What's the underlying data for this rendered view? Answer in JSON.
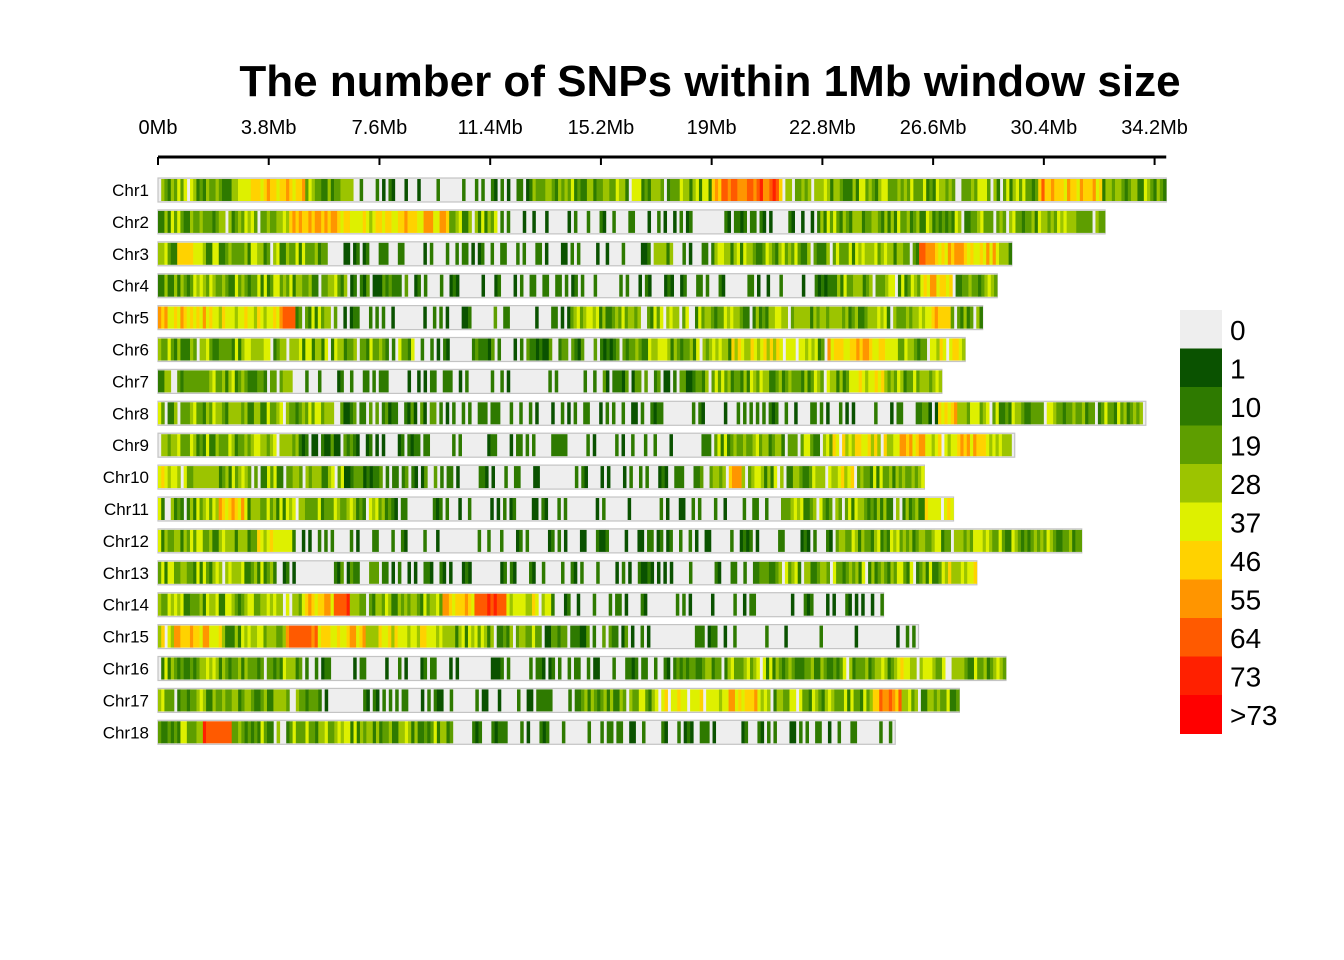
{
  "chart_data": {
    "type": "heatmap",
    "title": "The number of SNPs within 1Mb window size",
    "xlabel": "",
    "ylabel": "",
    "x_ticks": [
      "0Mb",
      "3.8Mb",
      "7.6Mb",
      "11.4Mb",
      "15.2Mb",
      "19Mb",
      "22.8Mb",
      "26.6Mb",
      "30.4Mb",
      "34.2Mb"
    ],
    "x_tick_values_mb": [
      0,
      3.8,
      7.6,
      11.4,
      15.2,
      19.0,
      22.8,
      26.6,
      30.4,
      34.2
    ],
    "xlim_mb": [
      0,
      34.6
    ],
    "legend": {
      "labels": [
        "0",
        "1",
        "10",
        "19",
        "28",
        "37",
        "46",
        "55",
        "64",
        "73",
        ">73"
      ],
      "colors": [
        "#eeeeee",
        "#0a5200",
        "#2e7a00",
        "#5e9e00",
        "#9cc400",
        "#def000",
        "#ffd200",
        "#ff9500",
        "#ff5a00",
        "#ff2000",
        "#ff0000"
      ],
      "position": "right"
    },
    "chromosomes": [
      {
        "name": "Chr1",
        "length_mb": 34.6,
        "pattern": "VVVVVPPPPVVVMMMMMMMMMMDVVVVVVVVVVVBBAAWVVVVVVVVVVVVVVVBPPPVVVV"
      },
      {
        "name": "Chr2",
        "length_mb": 32.5,
        "pattern": "VVVVVVVVPPPPPWPPPPVVVMMMMMMMMMMMMMMMMMMMMVVVVVVVVVVVVVVVVVV"
      },
      {
        "name": "Chr3",
        "length_mb": 29.3,
        "pattern": "VPVVVVVVVMMMMMMMMMMMMMMMMMVMMVVVVVVVVVVVBPPPV"
      },
      {
        "name": "Chr4",
        "length_mb": 28.8,
        "pattern": "VVVVVVVVVVVVDDDDMMMMMMMMMMMMMMMMMMMMMMMMMMDVVVVVVPPVVV"
      },
      {
        "name": "Chr5",
        "length_mb": 28.3,
        "pattern": "PPPWWWWAVVDDDMMMMMMDMMMDVVVVVVVVVVVVVVVVVVVVVPVV"
      },
      {
        "name": "Chr6",
        "length_mb": 27.7,
        "pattern": "VVVVVVVVVVVVVMMMDDDDDDDDVVVVVWWWWVPPPVVWW"
      },
      {
        "name": "Chr7",
        "length_mb": 26.9,
        "pattern": "VVVVVVVMMMMMMMMMMMMMMMMDDDDDVVVVVVVVWWVVV"
      },
      {
        "name": "Chr8",
        "length_mb": 33.9,
        "pattern": "VVVVVVVVVVDDDDDDMMMMMMMMMMMMMMMMMMMMMMMMMMMMDPVVVVVVVVVVV"
      },
      {
        "name": "Chr9",
        "length_mb": 29.4,
        "pattern": "VVVVVVVVVDDDDDMMMMMMMMMMMMMMMMMMMMMMVVVVVVVVWWWWPPWWPPWW"
      },
      {
        "name": "Chr10",
        "length_mb": 26.3,
        "pattern": "WWVVVVVVVVVVVDDDDDDDMMMMMMMMMMMMMMMMMMDVPVVVVVWWWVVVVV"
      },
      {
        "name": "Chr11",
        "length_mb": 27.3,
        "pattern": "VVVVPPVVVVVVVVVVMMMMMMMMMMMMMMMMMMMMMMMMMMDVVVVVVVVVVWW"
      },
      {
        "name": "Chr12",
        "length_mb": 31.7,
        "pattern": "VVVVVVWWMMMMMMMMMMMMMMMMMMMMMMMMMMMMMMMMDVVVVVVVVVVVVVVV"
      },
      {
        "name": "Chr13",
        "length_mb": 28.1,
        "pattern": "VVVVVVVMMMMDDDMMMMMMMMMMMMMMMMMMMMMMMDVVVVVVVVVVVWW"
      },
      {
        "name": "Chr14",
        "length_mb": 24.9,
        "pattern": "VVVVVVVVVPPAVVVVVVPPAAWWVMMMMMMMMMMMMMMMMMMMMM"
      },
      {
        "name": "Chr15",
        "length_mb": 26.1,
        "pattern": "WPPPVVVVAAWPPWWWWWVVVVVVDDDDDDMMMMMMMMMMMMMMMMMM"
      },
      {
        "name": "Chr16",
        "length_mb": 29.1,
        "pattern": "VVVVVVVVVVMMMMMMMMMMMMMMMMMMMMMMMMMDVVVVVVVVVVVVVVVWWWVVVVV"
      },
      {
        "name": "Chr17",
        "length_mb": 27.5,
        "pattern": "VVVVVVVVVVVMMMMMMMMMMMMMMMMMDVVVVVWWWWWPPWVVVVVVVBBVVVV"
      },
      {
        "name": "Chr18",
        "length_mb": 25.3,
        "pattern": "VVVAAVVVVVVVWVVVVVVVMMMMMMMMMMMMMMMMMMMMMMMMMMMMMM"
      }
    ]
  }
}
